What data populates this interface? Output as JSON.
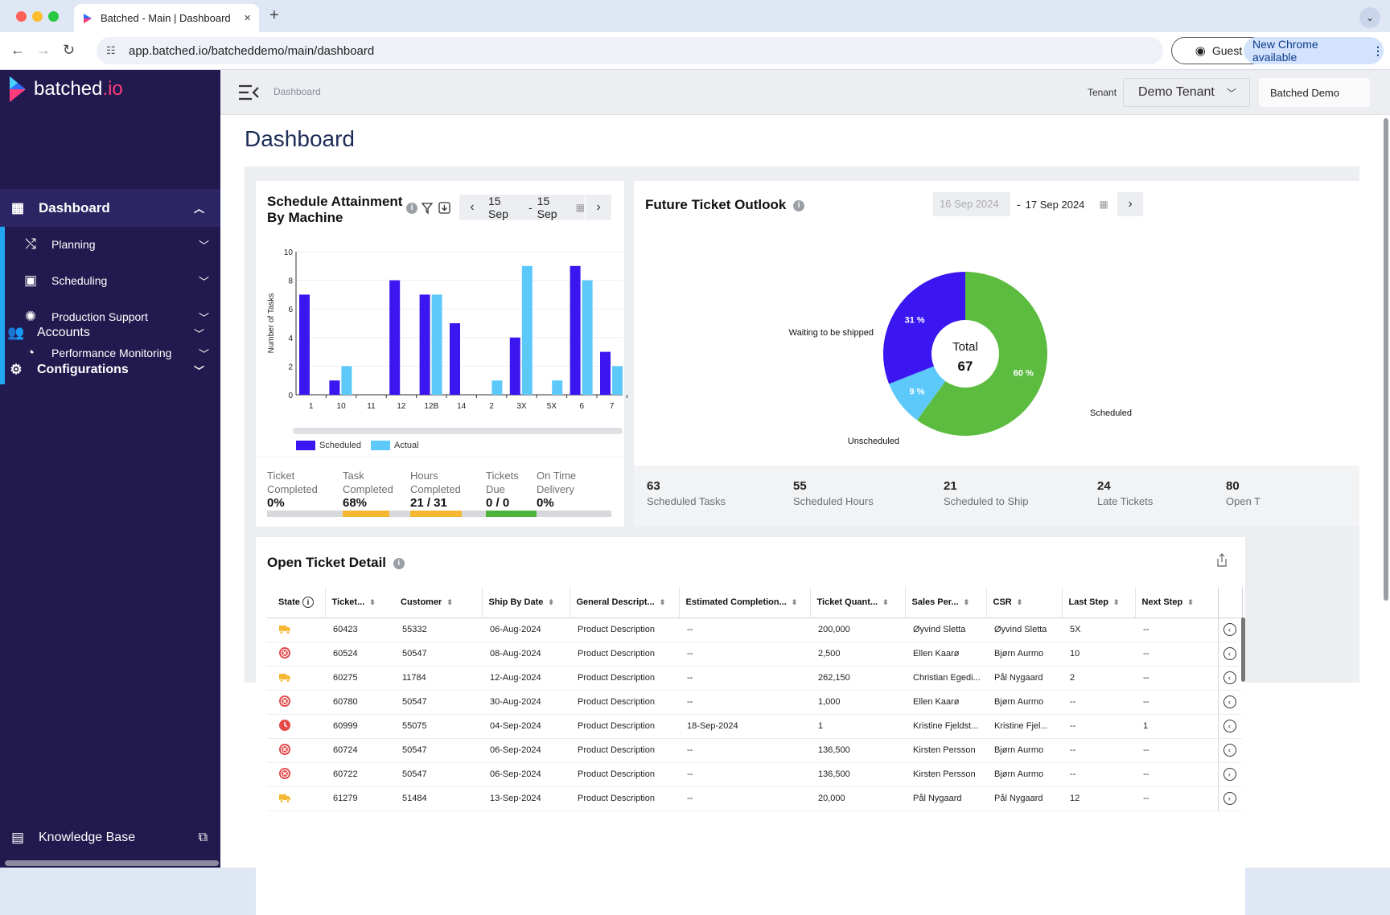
{
  "browser": {
    "tab_title": "Batched - Main | Dashboard",
    "url": "app.batched.io/batcheddemo/main/dashboard",
    "guest_label": "Guest",
    "update_label": "New Chrome available"
  },
  "brand": {
    "name": "batched",
    "suffix": ".io"
  },
  "sidebar": {
    "dashboard": "Dashboard",
    "items": [
      {
        "label": "Planning"
      },
      {
        "label": "Scheduling"
      },
      {
        "label": "Production Support"
      },
      {
        "label": "Performance Monitoring"
      }
    ],
    "accounts": "Accounts",
    "configurations": "Configurations",
    "knowledge_base": "Knowledge Base"
  },
  "header": {
    "breadcrumb": "Dashboard",
    "tenant_label": "Tenant",
    "tenant_value": "Demo Tenant",
    "company": "Batched Demo"
  },
  "page": {
    "title": "Dashboard"
  },
  "schedule": {
    "title_line1": "Schedule Attainment",
    "title_line2": "By Machine",
    "date_from": "15 Sep",
    "date_sep": "-",
    "date_to": "15 Sep",
    "stats": [
      {
        "label1": "Ticket",
        "label2": "Completed",
        "value": "0%"
      },
      {
        "label1": "Task",
        "label2": "Completed",
        "value": "68%"
      },
      {
        "label1": "Hours",
        "label2": "Completed",
        "value": "21 / 31"
      },
      {
        "label1": "Tickets",
        "label2": "Due",
        "value": "0 / 0"
      },
      {
        "label1": "On Time",
        "label2": "Delivery",
        "value": "0%"
      }
    ]
  },
  "chart_data": [
    {
      "type": "bar",
      "ylabel": "Number of Tasks",
      "ylim": [
        0,
        10
      ],
      "yticks": [
        "0",
        "2",
        "4",
        "6",
        "8",
        "10"
      ],
      "categories": [
        "1",
        "10",
        "11",
        "12",
        "12B",
        "14",
        "2",
        "3X",
        "5X",
        "6",
        "7"
      ],
      "series": [
        {
          "name": "Scheduled",
          "color": "#3b16f0",
          "values": [
            7,
            1,
            0,
            8,
            7,
            5,
            0,
            4,
            0,
            9,
            3
          ]
        },
        {
          "name": "Actual",
          "color": "#5dc9fb",
          "values": [
            0,
            2,
            0,
            0,
            7,
            0,
            1,
            9,
            1,
            8,
            2
          ]
        }
      ],
      "legend": "bottom-left"
    },
    {
      "type": "pie",
      "slices": [
        {
          "label": "Scheduled",
          "value": 60,
          "display": "60 %",
          "color": "#5cbc3f"
        },
        {
          "label": "Unscheduled",
          "value": 9,
          "display": "9 %",
          "color": "#5dc9fb"
        },
        {
          "label": "Waiting to be shipped",
          "value": 31,
          "display": "31 %",
          "color": "#3b16f0"
        }
      ],
      "center_label": "Total",
      "center_value": "67"
    }
  ],
  "outlook": {
    "title": "Future Ticket Outlook",
    "date_from": "16 Sep 2024",
    "date_sep": "-",
    "date_to": "17 Sep 2024",
    "kpis": [
      {
        "value": "63",
        "label": "Scheduled Tasks"
      },
      {
        "value": "55",
        "label": "Scheduled Hours"
      },
      {
        "value": "21",
        "label": "Scheduled to Ship"
      },
      {
        "value": "24",
        "label": "Late Tickets"
      },
      {
        "value": "80",
        "label": "Open T"
      }
    ]
  },
  "tickets": {
    "title": "Open Ticket Detail",
    "columns": [
      "State",
      "Ticket...",
      "Customer",
      "Ship By Date",
      "General Descript...",
      "Estimated Completion...",
      "Ticket Quant...",
      "Sales Per...",
      "CSR",
      "Last Step",
      "Next Step"
    ],
    "rows": [
      {
        "state": "truck",
        "ticket": "60423",
        "customer": "55332",
        "ship": "06-Aug-2024",
        "desc": "Product Description",
        "est": "--",
        "qty": "200,000",
        "sales": "Øyvind Sletta",
        "csr": "Øyvind Sletta",
        "last": "5X",
        "next": "--"
      },
      {
        "state": "error",
        "ticket": "60524",
        "customer": "50547",
        "ship": "08-Aug-2024",
        "desc": "Product Description",
        "est": "--",
        "qty": "2,500",
        "sales": "Ellen Kaarø",
        "csr": "Bjørn Aurmo",
        "last": "10",
        "next": "--"
      },
      {
        "state": "truck",
        "ticket": "60275",
        "customer": "11784",
        "ship": "12-Aug-2024",
        "desc": "Product Description",
        "est": "--",
        "qty": "262,150",
        "sales": "Christian Egedi...",
        "csr": "Pål Nygaard",
        "last": "2",
        "next": "--"
      },
      {
        "state": "error",
        "ticket": "60780",
        "customer": "50547",
        "ship": "30-Aug-2024",
        "desc": "Product Description",
        "est": "--",
        "qty": "1,000",
        "sales": "Ellen Kaarø",
        "csr": "Bjørn Aurmo",
        "last": "--",
        "next": "--"
      },
      {
        "state": "clock",
        "ticket": "60999",
        "customer": "55075",
        "ship": "04-Sep-2024",
        "desc": "Product Description",
        "est": "18-Sep-2024",
        "qty": "1",
        "sales": "Kristine Fjeldst...",
        "csr": "Kristine Fjel...",
        "last": "--",
        "next": "1"
      },
      {
        "state": "error",
        "ticket": "60724",
        "customer": "50547",
        "ship": "06-Sep-2024",
        "desc": "Product Description",
        "est": "--",
        "qty": "136,500",
        "sales": "Kirsten Persson",
        "csr": "Bjørn Aurmo",
        "last": "--",
        "next": "--"
      },
      {
        "state": "error",
        "ticket": "60722",
        "customer": "50547",
        "ship": "06-Sep-2024",
        "desc": "Product Description",
        "est": "--",
        "qty": "136,500",
        "sales": "Kirsten Persson",
        "csr": "Bjørn Aurmo",
        "last": "--",
        "next": "--"
      },
      {
        "state": "truck",
        "ticket": "61279",
        "customer": "51484",
        "ship": "13-Sep-2024",
        "desc": "Product Description",
        "est": "--",
        "qty": "20,000",
        "sales": "Pål Nygaard",
        "csr": "Pål Nygaard",
        "last": "12",
        "next": "--"
      }
    ]
  },
  "colors": {
    "sidebar": "#221a4e",
    "accent": "#22a6f2",
    "scheduled": "#3b16f0",
    "actual": "#5dc9fb",
    "green": "#5cbc3f",
    "orange": "#f5b731"
  }
}
